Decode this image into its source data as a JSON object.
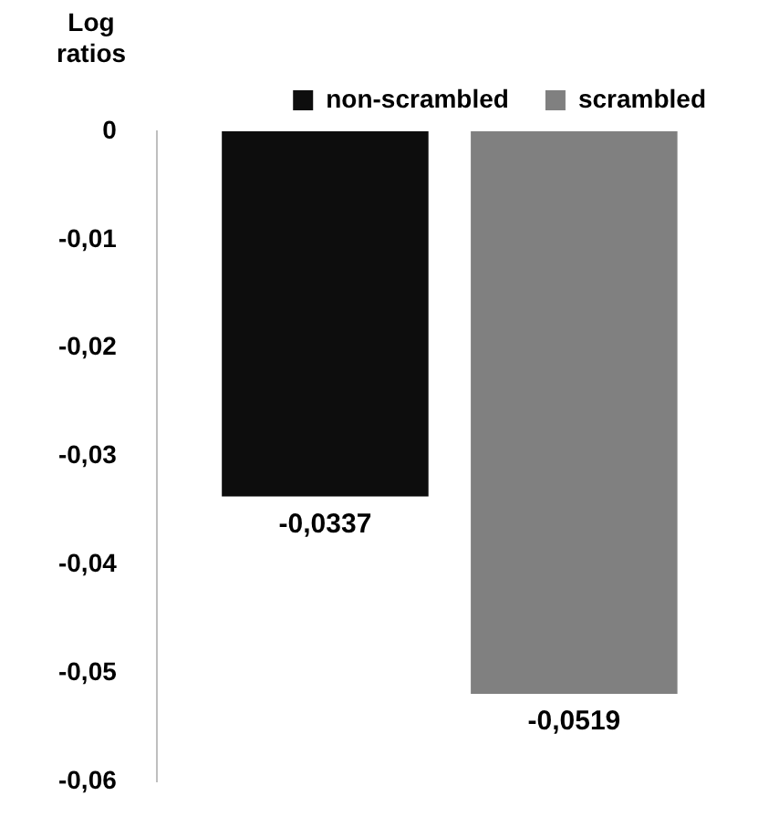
{
  "chart_data": {
    "type": "bar",
    "ylabel": "Log ratios",
    "categories": [
      null
    ],
    "series": [
      {
        "name": "non-scrambled",
        "color": "#0d0d0d",
        "values": [
          -0.0337
        ],
        "value_labels": [
          "-0,0337"
        ]
      },
      {
        "name": "scrambled",
        "color": "#808080",
        "values": [
          -0.0519
        ],
        "value_labels": [
          "-0,0519"
        ]
      }
    ],
    "ylim": [
      -0.06,
      0
    ],
    "yticks": [
      {
        "value": 0,
        "label": "0"
      },
      {
        "value": -0.01,
        "label": "-0,01"
      },
      {
        "value": -0.02,
        "label": "-0,02"
      },
      {
        "value": -0.03,
        "label": "-0,03"
      },
      {
        "value": -0.04,
        "label": "-0,04"
      },
      {
        "value": -0.05,
        "label": "-0,05"
      },
      {
        "value": -0.06,
        "label": "-0,06"
      }
    ],
    "grid": false,
    "legend": "top",
    "tick_labels": "y"
  }
}
